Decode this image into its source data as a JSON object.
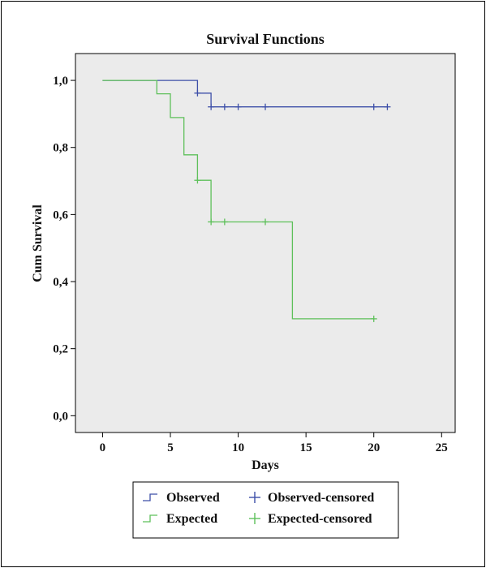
{
  "chart_data": {
    "type": "line",
    "title": "Survival Functions",
    "xlabel": "Days",
    "ylabel": "Cum Survival",
    "xlim": [
      -2,
      26
    ],
    "ylim": [
      -0.05,
      1.08
    ],
    "x_ticks": [
      0,
      5,
      10,
      15,
      20,
      25
    ],
    "x_tick_labels": [
      "0",
      "5",
      "10",
      "15",
      "20",
      "25"
    ],
    "y_ticks": [
      0.0,
      0.2,
      0.4,
      0.6,
      0.8,
      1.0
    ],
    "y_tick_labels": [
      "0,0",
      "0,2",
      "0,4",
      "0,6",
      "0,8",
      "1,0"
    ],
    "grid": false,
    "legend_position": "bottom",
    "series": [
      {
        "name": "Observed",
        "kind": "step",
        "color": "#3d4fa8",
        "points": [
          [
            0,
            1.0
          ],
          [
            7,
            1.0
          ],
          [
            7,
            0.962
          ],
          [
            8,
            0.962
          ],
          [
            8,
            0.921
          ],
          [
            21,
            0.921
          ]
        ]
      },
      {
        "name": "Expected",
        "kind": "step",
        "color": "#5ec05a",
        "points": [
          [
            0,
            1.0
          ],
          [
            4,
            1.0
          ],
          [
            4,
            0.96
          ],
          [
            5,
            0.96
          ],
          [
            5,
            0.889
          ],
          [
            6,
            0.889
          ],
          [
            6,
            0.778
          ],
          [
            7,
            0.778
          ],
          [
            7,
            0.702
          ],
          [
            8,
            0.702
          ],
          [
            8,
            0.578
          ],
          [
            14,
            0.578
          ],
          [
            14,
            0.289
          ],
          [
            20,
            0.289
          ]
        ]
      },
      {
        "name": "Observed-censored",
        "kind": "censor",
        "color": "#3d4fa8",
        "points": [
          [
            7,
            0.962
          ],
          [
            8,
            0.921
          ],
          [
            9,
            0.921
          ],
          [
            10,
            0.921
          ],
          [
            12,
            0.921
          ],
          [
            20,
            0.921
          ],
          [
            21,
            0.921
          ]
        ]
      },
      {
        "name": "Expected-censored",
        "kind": "censor",
        "color": "#5ec05a",
        "points": [
          [
            7,
            0.702
          ],
          [
            8,
            0.578
          ],
          [
            9,
            0.578
          ],
          [
            12,
            0.578
          ],
          [
            20,
            0.289
          ]
        ]
      }
    ],
    "legend": [
      {
        "label": "Observed",
        "symbol": "step",
        "color": "#3d4fa8"
      },
      {
        "label": "Observed-censored",
        "symbol": "plus",
        "color": "#3d4fa8"
      },
      {
        "label": "Expected",
        "symbol": "step",
        "color": "#5ec05a"
      },
      {
        "label": "Expected-censored",
        "symbol": "plus",
        "color": "#5ec05a"
      }
    ],
    "plot_background": "#ebebeb"
  }
}
